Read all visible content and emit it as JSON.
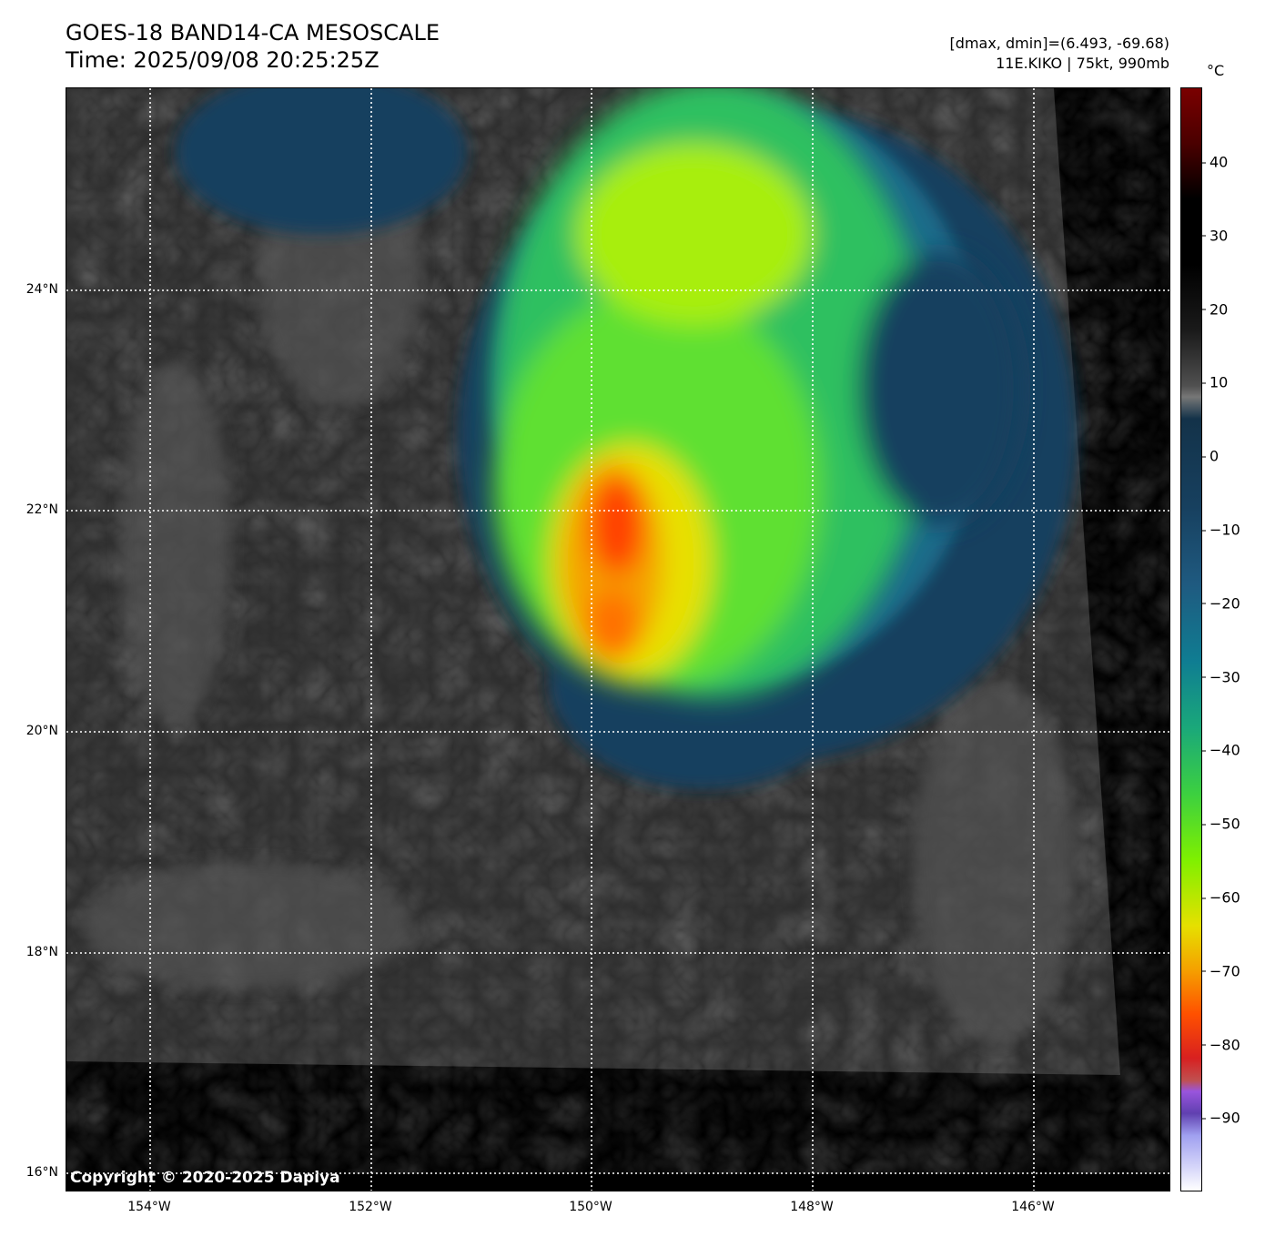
{
  "header": {
    "title": "GOES-18 BAND14-CA MESOSCALE",
    "time": "Time: 2025/09/08 20:25:25Z",
    "range": "[dmax, dmin]=(6.493, -69.68)",
    "storm": "11E.KIKO | 75kt, 990mb"
  },
  "map": {
    "lat_labels": [
      "24°N",
      "22°N",
      "20°N",
      "18°N",
      "16°N"
    ],
    "lon_labels": [
      "154°W",
      "152°W",
      "150°W",
      "148°W",
      "146°W"
    ],
    "copyright": "Copyright © 2020-2025 Dapiya"
  },
  "colorbar": {
    "unit": "°C",
    "range": [
      -100,
      50
    ],
    "ticks": [
      "40",
      "30",
      "20",
      "10",
      "0",
      "−10",
      "−20",
      "−30",
      "−40",
      "−50",
      "−60",
      "−70",
      "−80",
      "−90"
    ]
  }
}
